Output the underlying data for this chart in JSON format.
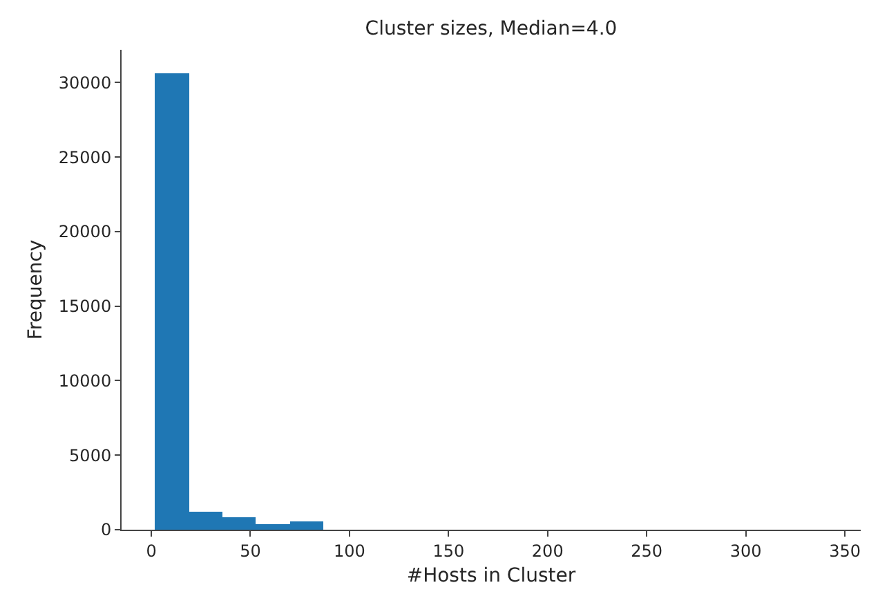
{
  "chart_data": {
    "type": "histogram",
    "title": "Cluster sizes, Median=4.0",
    "xlabel": "#Hosts in Cluster",
    "ylabel": "Frequency",
    "color": "#1f77b4",
    "bins": [
      2,
      18.95,
      35.9,
      52.85,
      69.8,
      86.75,
      103.7,
      120.65,
      137.6,
      154.55,
      171.5,
      188.45,
      205.4,
      222.35,
      239.3,
      256.25,
      273.2,
      290.15,
      307.1,
      324.05,
      341
    ],
    "values": [
      30600,
      1200,
      800,
      400,
      600,
      0,
      0,
      0,
      0,
      0,
      0,
      0,
      0,
      0,
      0,
      0,
      0,
      0,
      0,
      0
    ],
    "xlim": [
      -15,
      358
    ],
    "xticks": [
      0,
      50,
      100,
      150,
      200,
      250,
      300,
      350
    ],
    "ylim": [
      0,
      32200
    ],
    "yticks": [
      0,
      5000,
      10000,
      15000,
      20000,
      25000,
      30000
    ]
  }
}
